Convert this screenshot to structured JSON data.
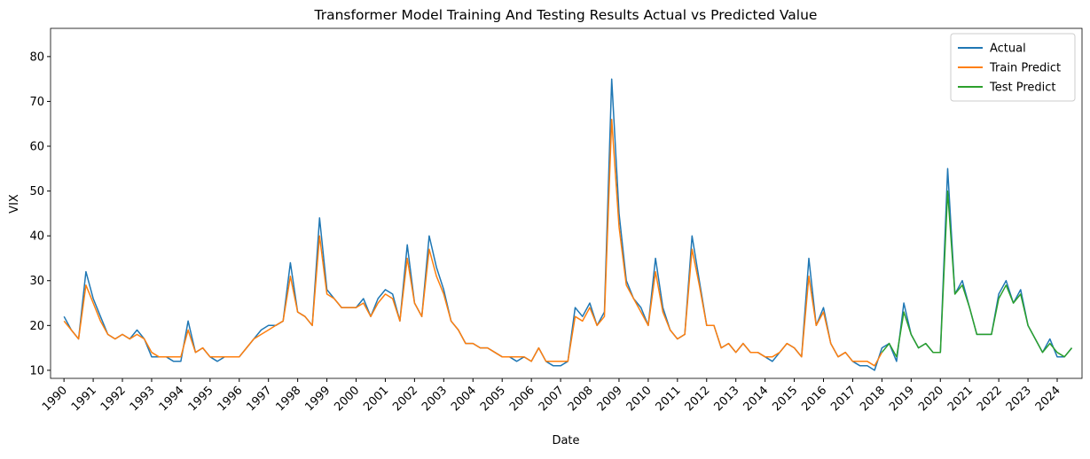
{
  "chart_data": {
    "type": "line",
    "title": "Transformer Model Training And Testing Results Actual vs Predicted Value",
    "x_label": "Date",
    "y_label": "VIX",
    "x": [
      1990.0,
      1990.25,
      1990.5,
      1990.75,
      1991.0,
      1991.25,
      1991.5,
      1991.75,
      1992.0,
      1992.25,
      1992.5,
      1992.75,
      1993.0,
      1993.25,
      1993.5,
      1993.75,
      1994.0,
      1994.25,
      1994.5,
      1994.75,
      1995.0,
      1995.25,
      1995.5,
      1995.75,
      1996.0,
      1996.25,
      1996.5,
      1996.75,
      1997.0,
      1997.25,
      1997.5,
      1997.75,
      1998.0,
      1998.25,
      1998.5,
      1998.75,
      1999.0,
      1999.25,
      1999.5,
      1999.75,
      2000.0,
      2000.25,
      2000.5,
      2000.75,
      2001.0,
      2001.25,
      2001.5,
      2001.75,
      2002.0,
      2002.25,
      2002.5,
      2002.75,
      2003.0,
      2003.25,
      2003.5,
      2003.75,
      2004.0,
      2004.25,
      2004.5,
      2004.75,
      2005.0,
      2005.25,
      2005.5,
      2005.75,
      2006.0,
      2006.25,
      2006.5,
      2006.75,
      2007.0,
      2007.25,
      2007.5,
      2007.75,
      2008.0,
      2008.25,
      2008.5,
      2008.75,
      2009.0,
      2009.25,
      2009.5,
      2009.75,
      2010.0,
      2010.25,
      2010.5,
      2010.75,
      2011.0,
      2011.25,
      2011.5,
      2011.75,
      2012.0,
      2012.25,
      2012.5,
      2012.75,
      2013.0,
      2013.25,
      2013.5,
      2013.75,
      2014.0,
      2014.25,
      2014.5,
      2014.75,
      2015.0,
      2015.25,
      2015.5,
      2015.75,
      2016.0,
      2016.25,
      2016.5,
      2016.75,
      2017.0,
      2017.25,
      2017.5,
      2017.75,
      2018.0,
      2018.25,
      2018.5,
      2018.75,
      2019.0,
      2019.25,
      2019.5,
      2019.75,
      2020.0,
      2020.25,
      2020.5,
      2020.75,
      2021.0,
      2021.25,
      2021.5,
      2021.75,
      2022.0,
      2022.25,
      2022.5,
      2022.75,
      2023.0,
      2023.25,
      2023.5,
      2023.75,
      2024.0,
      2024.25,
      2024.5
    ],
    "series": [
      {
        "name": "Actual",
        "color": "#1f77b4",
        "values": [
          22,
          19,
          17,
          32,
          26,
          22,
          18,
          17,
          18,
          17,
          19,
          17,
          13,
          13,
          13,
          12,
          12,
          21,
          14,
          15,
          13,
          12,
          13,
          13,
          13,
          15,
          17,
          19,
          20,
          20,
          21,
          34,
          23,
          22,
          20,
          44,
          28,
          26,
          24,
          24,
          24,
          26,
          22,
          26,
          28,
          27,
          21,
          38,
          25,
          22,
          40,
          33,
          28,
          21,
          19,
          16,
          16,
          15,
          15,
          14,
          13,
          13,
          12,
          13,
          12,
          15,
          12,
          11,
          11,
          12,
          24,
          22,
          25,
          20,
          23,
          75,
          45,
          30,
          26,
          24,
          20,
          35,
          24,
          19,
          17,
          18,
          40,
          30,
          20,
          20,
          15,
          16,
          14,
          16,
          14,
          14,
          13,
          12,
          14,
          16,
          15,
          13,
          35,
          20,
          24,
          16,
          13,
          14,
          12,
          11,
          11,
          10,
          15,
          16,
          12,
          25,
          18,
          15,
          16,
          14,
          14,
          55,
          27,
          30,
          24,
          18,
          18,
          18,
          27,
          30,
          25,
          28,
          20,
          17,
          14,
          17,
          13,
          13,
          15
        ]
      },
      {
        "name": "Train Predict",
        "color": "#ff7f0e",
        "values": [
          21,
          19,
          17,
          29,
          25,
          21,
          18,
          17,
          18,
          17,
          18,
          17,
          14,
          13,
          13,
          13,
          13,
          19,
          14,
          15,
          13,
          13,
          13,
          13,
          13,
          15,
          17,
          18,
          19,
          20,
          21,
          31,
          23,
          22,
          20,
          40,
          27,
          26,
          24,
          24,
          24,
          25,
          22,
          25,
          27,
          26,
          21,
          35,
          25,
          22,
          37,
          31,
          27,
          21,
          19,
          16,
          16,
          15,
          15,
          14,
          13,
          13,
          13,
          13,
          12,
          15,
          12,
          12,
          12,
          12,
          22,
          21,
          24,
          20,
          22,
          66,
          42,
          29,
          26,
          23,
          20,
          32,
          23,
          19,
          17,
          18,
          37,
          29,
          20,
          20,
          15,
          16,
          14,
          16,
          14,
          14,
          13,
          13,
          14,
          16,
          15,
          13,
          31,
          20,
          23,
          16,
          13,
          14,
          12,
          12,
          12,
          11,
          14,
          null,
          null,
          null,
          null,
          null,
          null,
          null,
          null,
          null,
          null,
          null,
          null,
          null,
          null,
          null,
          null,
          null,
          null,
          null,
          null,
          null,
          null,
          null,
          null,
          null,
          null
        ]
      },
      {
        "name": "Test Predict",
        "color": "#2ca02c",
        "values": [
          null,
          null,
          null,
          null,
          null,
          null,
          null,
          null,
          null,
          null,
          null,
          null,
          null,
          null,
          null,
          null,
          null,
          null,
          null,
          null,
          null,
          null,
          null,
          null,
          null,
          null,
          null,
          null,
          null,
          null,
          null,
          null,
          null,
          null,
          null,
          null,
          null,
          null,
          null,
          null,
          null,
          null,
          null,
          null,
          null,
          null,
          null,
          null,
          null,
          null,
          null,
          null,
          null,
          null,
          null,
          null,
          null,
          null,
          null,
          null,
          null,
          null,
          null,
          null,
          null,
          null,
          null,
          null,
          null,
          null,
          null,
          null,
          null,
          null,
          null,
          null,
          null,
          null,
          null,
          null,
          null,
          null,
          null,
          null,
          null,
          null,
          null,
          null,
          null,
          null,
          null,
          null,
          null,
          null,
          null,
          null,
          null,
          null,
          null,
          null,
          null,
          null,
          null,
          null,
          null,
          null,
          null,
          null,
          null,
          null,
          null,
          null,
          14,
          16,
          13,
          23,
          18,
          15,
          16,
          14,
          14,
          50,
          27,
          29,
          24,
          18,
          18,
          18,
          26,
          29,
          25,
          27,
          20,
          17,
          14,
          16,
          14,
          13,
          15
        ]
      }
    ],
    "xlim": [
      1989.54,
      2024.85
    ],
    "xticks": [
      1990,
      1991,
      1992,
      1993,
      1994,
      1995,
      1996,
      1997,
      1998,
      1999,
      2000,
      2001,
      2002,
      2003,
      2004,
      2005,
      2006,
      2007,
      2008,
      2009,
      2010,
      2011,
      2012,
      2013,
      2014,
      2015,
      2016,
      2017,
      2018,
      2019,
      2020,
      2021,
      2022,
      2023,
      2024
    ],
    "ylim": [
      8.2,
      86.3
    ],
    "yticks": [
      10,
      20,
      30,
      40,
      50,
      60,
      70,
      80
    ],
    "legend": "upper right"
  }
}
